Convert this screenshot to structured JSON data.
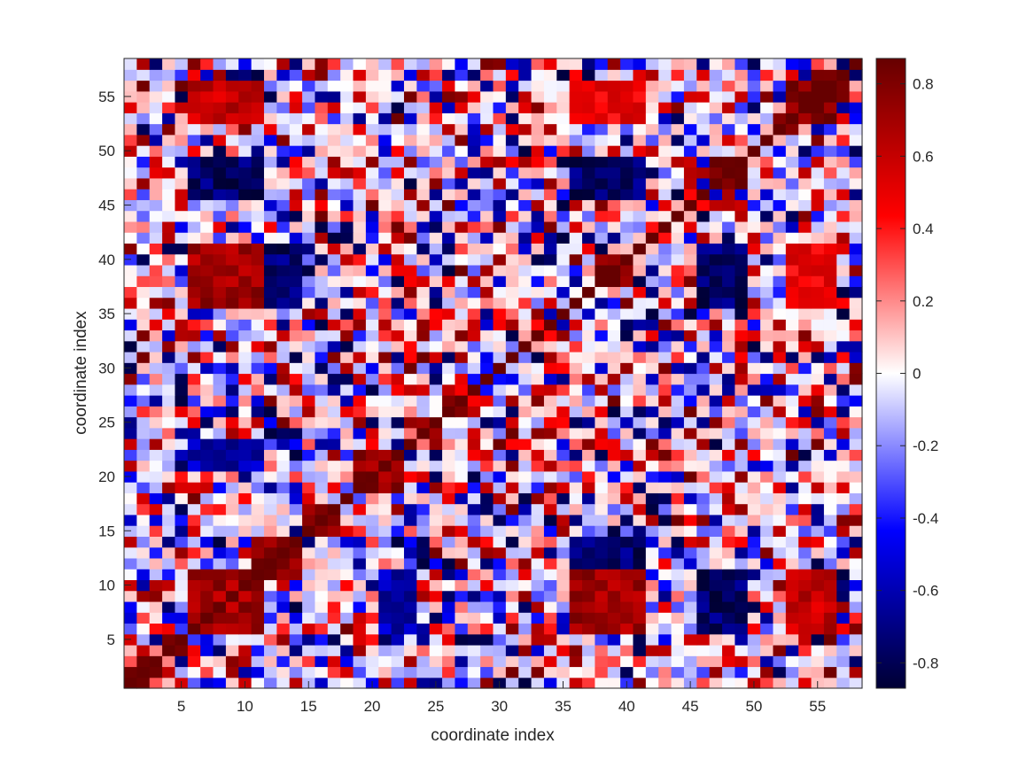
{
  "chart_data": {
    "type": "heatmap",
    "title": "",
    "xlabel": "coordinate index",
    "ylabel": "coordinate index",
    "size": 58,
    "x_range": [
      1,
      58
    ],
    "y_range": [
      1,
      58
    ],
    "x_ticks": [
      5,
      10,
      15,
      20,
      25,
      30,
      35,
      40,
      45,
      50,
      55
    ],
    "y_ticks": [
      5,
      10,
      15,
      20,
      25,
      30,
      35,
      40,
      45,
      50,
      55
    ],
    "x_tick_labels": [
      "5",
      "10",
      "15",
      "20",
      "25",
      "30",
      "35",
      "40",
      "45",
      "50",
      "55"
    ],
    "y_tick_labels": [
      "5",
      "10",
      "15",
      "20",
      "25",
      "30",
      "35",
      "40",
      "45",
      "50",
      "55"
    ],
    "color_range": [
      -0.87,
      0.87
    ],
    "colorbar": {
      "ticks": [
        -0.8,
        -0.6,
        -0.4,
        -0.2,
        0,
        0.2,
        0.4,
        0.6,
        0.8
      ],
      "tick_labels": [
        "-0.8",
        "-0.6",
        "-0.4",
        "-0.2",
        "0",
        "0.2",
        "0.4",
        "0.6",
        "0.8"
      ]
    },
    "colormap": {
      "min_color": "#000033",
      "blue": "#0000ff",
      "mid_color": "#ffffff",
      "red": "#ff0000",
      "max_color": "#660000"
    },
    "grid": false,
    "legend": "colorbar-right",
    "diagonal_value": 0.87,
    "block_pattern": [
      {
        "row": [
          6,
          11
        ],
        "col": [
          6,
          11
        ],
        "value": 0.7
      },
      {
        "row": [
          12,
          14
        ],
        "col": [
          11,
          14
        ],
        "value": 0.8
      },
      {
        "row": [
          15,
          17
        ],
        "col": [
          15,
          17
        ],
        "value": 0.8
      },
      {
        "row": [
          19,
          21
        ],
        "col": [
          19,
          22
        ],
        "value": 0.75
      },
      {
        "row": [
          36,
          41
        ],
        "col": [
          6,
          11
        ],
        "value": 0.7
      },
      {
        "row": [
          38,
          40
        ],
        "col": [
          38,
          40
        ],
        "value": 0.8
      },
      {
        "row": [
          47,
          49
        ],
        "col": [
          47,
          49
        ],
        "value": 0.8
      },
      {
        "row": [
          53,
          56
        ],
        "col": [
          53,
          56
        ],
        "value": 0.8
      },
      {
        "row": [
          6,
          11
        ],
        "col": [
          36,
          41
        ],
        "value": 0.7
      },
      {
        "row": [
          6,
          11
        ],
        "col": [
          53,
          56
        ],
        "value": 0.6
      },
      {
        "row": [
          36,
          41
        ],
        "col": [
          12,
          14
        ],
        "value": -0.75
      },
      {
        "row": [
          12,
          14
        ],
        "col": [
          36,
          41
        ],
        "value": -0.75
      },
      {
        "row": [
          46,
          49
        ],
        "col": [
          6,
          11
        ],
        "value": -0.75
      },
      {
        "row": [
          6,
          11
        ],
        "col": [
          46,
          49
        ],
        "value": -0.75
      },
      {
        "row": [
          36,
          41
        ],
        "col": [
          46,
          49
        ],
        "value": -0.75
      },
      {
        "row": [
          46,
          49
        ],
        "col": [
          36,
          41
        ],
        "value": -0.75
      },
      {
        "row": [
          36,
          41
        ],
        "col": [
          53,
          56
        ],
        "value": 0.5
      },
      {
        "row": [
          53,
          56
        ],
        "col": [
          36,
          41
        ],
        "value": 0.5
      },
      {
        "row": [
          21,
          23
        ],
        "col": [
          6,
          11
        ],
        "value": -0.6
      },
      {
        "row": [
          6,
          11
        ],
        "col": [
          21,
          23
        ],
        "value": -0.6
      }
    ]
  }
}
